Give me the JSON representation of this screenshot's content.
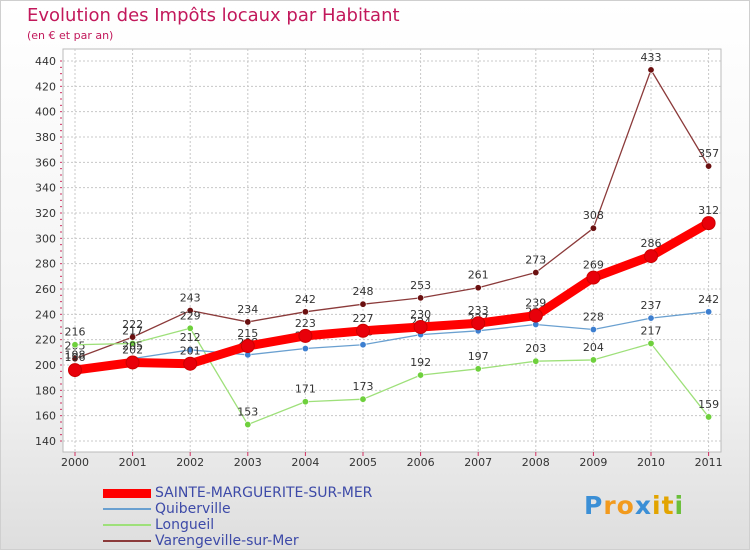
{
  "header": {
    "title": "Evolution des Impôts locaux par Habitant",
    "subtitle": "(en € et par an)"
  },
  "chart_data": {
    "type": "line",
    "title": "Evolution des Impôts locaux par Habitant",
    "subtitle": "(en € et par an)",
    "xlabel": "",
    "ylabel": "",
    "x": [
      "2000",
      "2001",
      "2002",
      "2003",
      "2004",
      "2005",
      "2006",
      "2007",
      "2008",
      "2009",
      "2010",
      "2011"
    ],
    "ylim": [
      140,
      440
    ],
    "yticks": [
      140,
      160,
      180,
      200,
      220,
      240,
      260,
      280,
      300,
      320,
      340,
      360,
      380,
      400,
      420,
      440
    ],
    "grid": true,
    "legend_position": "bottom-left",
    "series": [
      {
        "name": "Varengeville-sur-Mer",
        "color": "#8b3a3a",
        "marker_color": "#6b1010",
        "values": [
          205,
          222,
          243,
          234,
          242,
          248,
          253,
          261,
          273,
          308,
          433,
          357
        ]
      },
      {
        "name": "Longueil",
        "color": "#9ee07a",
        "marker_color": "#6ed03c",
        "values": [
          216,
          217,
          229,
          153,
          171,
          173,
          192,
          197,
          203,
          204,
          217,
          159
        ]
      },
      {
        "name": "Quiberville",
        "color": "#6aa0d0",
        "marker_color": "#3d7fd0",
        "values": [
          198,
          205,
          212,
          208,
          213,
          216,
          224,
          227,
          232,
          228,
          237,
          242
        ]
      },
      {
        "name": "SAINTE-MARGUERITE-SUR-MER",
        "color": "#ff0000",
        "marker_color": "#e8000a",
        "values": [
          196,
          202,
          201,
          215,
          223,
          227,
          230,
          233,
          239,
          269,
          286,
          312
        ]
      }
    ],
    "legend": [
      "SAINTE-MARGUERITE-SUR-MER",
      "Quiberville",
      "Longueil",
      "Varengeville-sur-Mer"
    ]
  },
  "logo": {
    "letters": [
      {
        "ch": "P",
        "color": "#3b8fd6"
      },
      {
        "ch": "r",
        "color": "#f29a1d"
      },
      {
        "ch": "o",
        "color": "#f29a1d"
      },
      {
        "ch": "x",
        "color": "#3b8fd6"
      },
      {
        "ch": "i",
        "color": "#e2a400"
      },
      {
        "ch": "t",
        "color": "#e2a400"
      },
      {
        "ch": "i",
        "color": "#6abf3a"
      }
    ]
  }
}
